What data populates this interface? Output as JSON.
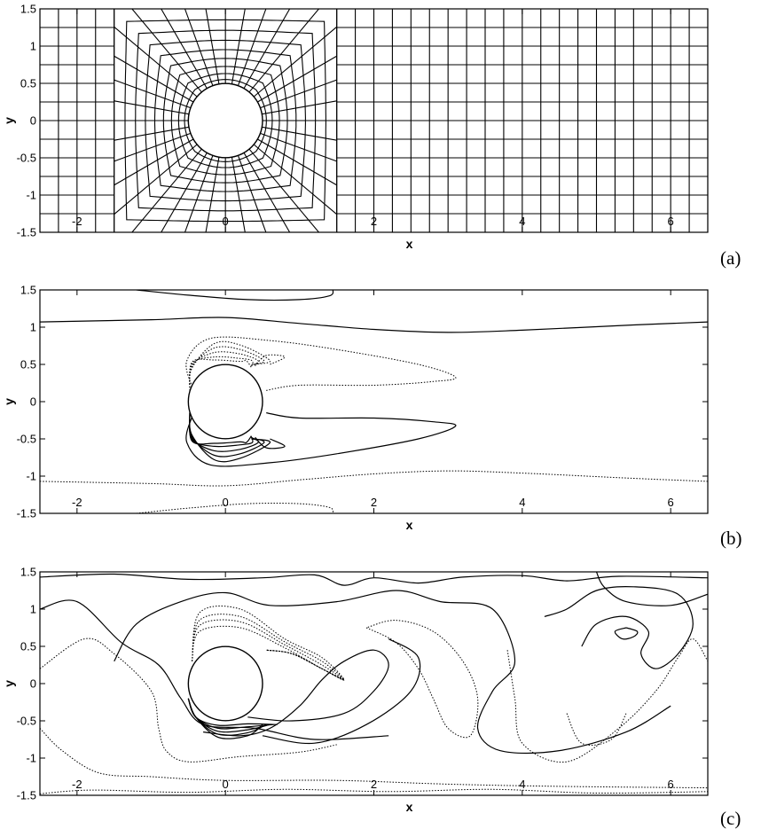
{
  "panels": [
    {
      "id": "a",
      "label": "(a)",
      "xlabel": "x",
      "ylabel": "y",
      "xlim": [
        -2.5,
        6.5
      ],
      "ylim": [
        -1.5,
        1.5
      ],
      "xticks": [
        "-2",
        "0",
        "2",
        "4",
        "6"
      ],
      "yticks": [
        "1.5",
        "1",
        "0.5",
        "0",
        "-0.5",
        "-1",
        "-1.5"
      ],
      "content": "computational mesh around circular cylinder"
    },
    {
      "id": "b",
      "label": "(b)",
      "xlabel": "x",
      "ylabel": "y",
      "xlim": [
        -2.5,
        6.5
      ],
      "ylim": [
        -1.5,
        1.5
      ],
      "xticks": [
        "-2",
        "0",
        "2",
        "4",
        "6"
      ],
      "yticks": [
        "1.5",
        "1",
        "0.5",
        "0",
        "-0.5",
        "-1",
        "-1.5"
      ],
      "content": "steady symmetric contour field (solid positive, dotted negative)"
    },
    {
      "id": "c",
      "label": "(c)",
      "xlabel": "x",
      "ylabel": "y",
      "xlim": [
        -2.5,
        6.5
      ],
      "ylim": [
        -1.5,
        1.5
      ],
      "xticks": [
        "-2",
        "0",
        "2",
        "4",
        "6"
      ],
      "yticks": [
        "1.5",
        "1",
        "0.5",
        "0",
        "-0.5",
        "-1",
        "-1.5"
      ],
      "content": "unsteady vortex-shedding contour field"
    }
  ],
  "cylinder": {
    "center": [
      0,
      0
    ],
    "radius": 0.5
  },
  "mesh": {
    "outer_box_x": [
      -1.5,
      1.5
    ],
    "radial_lines": 36,
    "rings": 9,
    "outer_grid_spacing": 0.25
  },
  "colors": {
    "line": "#000000",
    "background": "#ffffff"
  }
}
